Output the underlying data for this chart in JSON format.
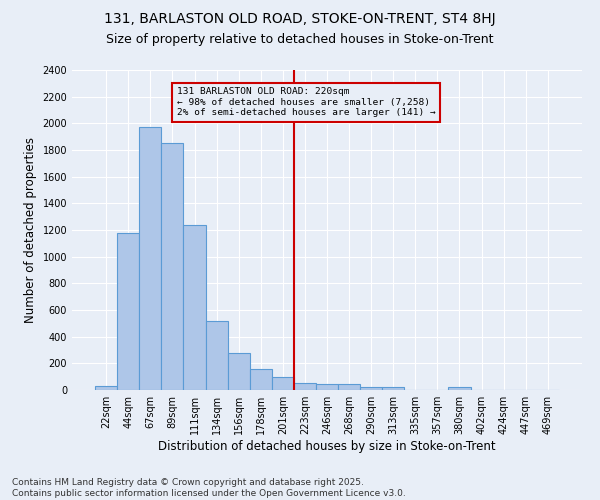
{
  "title1": "131, BARLASTON OLD ROAD, STOKE-ON-TRENT, ST4 8HJ",
  "title2": "Size of property relative to detached houses in Stoke-on-Trent",
  "xlabel": "Distribution of detached houses by size in Stoke-on-Trent",
  "ylabel": "Number of detached properties",
  "bar_labels": [
    "22sqm",
    "44sqm",
    "67sqm",
    "89sqm",
    "111sqm",
    "134sqm",
    "156sqm",
    "178sqm",
    "201sqm",
    "223sqm",
    "246sqm",
    "268sqm",
    "290sqm",
    "313sqm",
    "335sqm",
    "357sqm",
    "380sqm",
    "402sqm",
    "424sqm",
    "447sqm",
    "469sqm"
  ],
  "bar_values": [
    30,
    1175,
    1975,
    1855,
    1240,
    515,
    275,
    160,
    95,
    55,
    45,
    45,
    25,
    20,
    0,
    0,
    20,
    0,
    0,
    0,
    0
  ],
  "bar_color": "#aec6e8",
  "bar_edge_color": "#5b9bd5",
  "vline_color": "#cc0000",
  "annotation_text": "131 BARLASTON OLD ROAD: 220sqm\n← 98% of detached houses are smaller (7,258)\n2% of semi-detached houses are larger (141) →",
  "annotation_box_color": "#cc0000",
  "background_color": "#e8eef7",
  "grid_color": "#ffffff",
  "ylim": [
    0,
    2400
  ],
  "yticks": [
    0,
    200,
    400,
    600,
    800,
    1000,
    1200,
    1400,
    1600,
    1800,
    2000,
    2200,
    2400
  ],
  "footer1": "Contains HM Land Registry data © Crown copyright and database right 2025.",
  "footer2": "Contains public sector information licensed under the Open Government Licence v3.0.",
  "title1_fontsize": 10,
  "title2_fontsize": 9,
  "xlabel_fontsize": 8.5,
  "ylabel_fontsize": 8.5,
  "tick_fontsize": 7,
  "footer_fontsize": 6.5
}
